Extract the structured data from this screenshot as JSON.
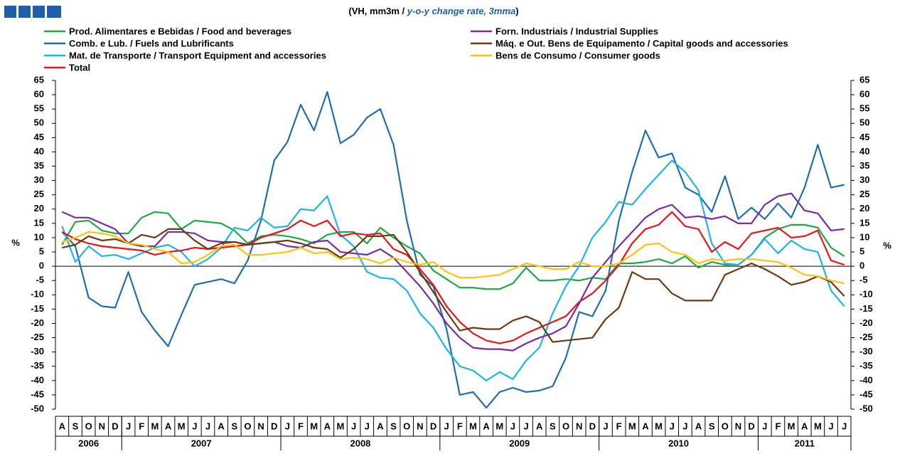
{
  "chart_data": {
    "type": "line",
    "title_parts": [
      "(VH, mm3m / ",
      "y-o-y change rate, 3mma",
      ")"
    ],
    "y_label": "%",
    "y2_label": "%",
    "categories": [
      "A",
      "S",
      "O",
      "N",
      "D",
      "J",
      "F",
      "M",
      "A",
      "M",
      "J",
      "J",
      "A",
      "S",
      "O",
      "N",
      "D",
      "J",
      "F",
      "M",
      "A",
      "M",
      "J",
      "J",
      "A",
      "S",
      "O",
      "N",
      "D",
      "J",
      "F",
      "M",
      "A",
      "M",
      "J",
      "J",
      "A",
      "S",
      "O",
      "N",
      "D",
      "J",
      "F",
      "M",
      "A",
      "M",
      "J",
      "J",
      "A",
      "S",
      "O",
      "N",
      "D",
      "J",
      "F",
      "M",
      "A",
      "M",
      "J",
      "J"
    ],
    "years": [
      "2006",
      "2007",
      "2008",
      "2009",
      "2010",
      "2011"
    ],
    "ylim": [
      -50,
      65
    ],
    "yticks": [
      -50,
      -45,
      -40,
      -35,
      -30,
      -25,
      -20,
      -15,
      -10,
      -5,
      0,
      5,
      10,
      15,
      20,
      25,
      30,
      35,
      40,
      45,
      50,
      55,
      60,
      65
    ],
    "y2lim": [
      -50,
      65
    ],
    "y2ticks": [
      -50,
      -45,
      -40,
      -35,
      -30,
      -25,
      -20,
      -15,
      -10,
      -5,
      0,
      5,
      10,
      15,
      20,
      25,
      30,
      35,
      40,
      45,
      50,
      55,
      60,
      65
    ],
    "series": [
      {
        "name": "Prod. Alimentares e Bebidas / Food and beverages",
        "color": "#1fa845",
        "values": [
          7.5,
          15.5,
          16,
          12.5,
          11.5,
          11.5,
          17,
          19,
          18.5,
          13,
          16,
          15.5,
          15,
          12.5,
          8,
          10.5,
          11,
          10.5,
          9.5,
          8,
          11,
          12,
          12,
          8,
          13.5,
          10,
          7,
          4.5,
          -1.5,
          -4.5,
          -7.5,
          -7.5,
          -8,
          -8,
          -6,
          -0.5,
          -5,
          -5,
          -4.5,
          -5,
          -4,
          -4.5,
          1,
          1,
          1.5,
          2.5,
          1,
          3.5,
          -0.5,
          1.5,
          0.5,
          0.5,
          4,
          10,
          13,
          14.5,
          14.5,
          13.5,
          6.5,
          3.5
        ]
      },
      {
        "name": "Comb. e Lub. /  Fuels and Lubrificants",
        "color": "#1f6db3",
        "values": [
          12,
          7,
          -11,
          -14,
          -14.5,
          -2,
          -16,
          -22.5,
          -28,
          -17,
          -6.5,
          -5.5,
          -4.5,
          -6,
          2,
          16,
          37,
          43.5,
          56.5,
          47.5,
          61,
          43,
          46,
          52,
          55,
          42.5,
          16,
          -3,
          -7,
          -22,
          -45,
          -44,
          -49.5,
          -44,
          -42.5,
          -44,
          -43.5,
          -42,
          -32,
          -16,
          -17.5,
          -8.5,
          16,
          33,
          47.5,
          38,
          39.5,
          27.5,
          25,
          19,
          31.5,
          16.5,
          20.5,
          16.5,
          22,
          17,
          27.5,
          42.5,
          27.5,
          28.5
        ]
      },
      {
        "name": "Mat. de Transporte / Transport Equipment and accessories",
        "color": "#1eb4ea",
        "values": [
          14,
          1.5,
          7,
          3.5,
          4,
          2.5,
          4.5,
          6.5,
          7.5,
          5,
          0,
          2.5,
          6.5,
          13.5,
          12.5,
          17,
          13.5,
          14,
          20,
          19.5,
          24.5,
          11,
          7,
          -2,
          -4,
          -4.5,
          -8.5,
          -16.5,
          -21.5,
          -29,
          -35,
          -36.5,
          -40,
          -37,
          -39.5,
          -33,
          -28.5,
          -16.5,
          -7,
          0,
          10,
          15.5,
          22.5,
          21.5,
          27,
          32,
          37,
          33,
          26.5,
          8,
          1,
          0.5,
          4,
          9.5,
          4.5,
          9,
          6,
          5,
          -8.5,
          -14
        ]
      },
      {
        "name": "Total",
        "color": "#e8141b",
        "values": [
          12,
          9.5,
          8,
          7,
          6.5,
          6,
          5.5,
          4,
          5,
          5.5,
          6.5,
          6,
          6.5,
          7,
          7.5,
          10,
          11.5,
          13,
          16,
          14,
          16,
          10.5,
          11.5,
          11,
          11.5,
          6,
          4,
          -1,
          -6.5,
          -14,
          -19.5,
          -23.5,
          -26,
          -27,
          -26,
          -23.5,
          -21.5,
          -19.5,
          -17.5,
          -12.5,
          -9.5,
          -5,
          0.5,
          8,
          13,
          14.5,
          19,
          14,
          13,
          5,
          8.5,
          6,
          11.5,
          12.5,
          13.5,
          10,
          10.5,
          12.5,
          2,
          0.5
        ]
      },
      {
        "name": "Forn. Industriais / Industrial Supplies",
        "color": "#7a2c9e",
        "values": [
          19,
          17,
          17,
          15,
          13,
          8,
          7,
          7,
          12,
          12,
          11.5,
          9,
          8.5,
          8.5,
          7.5,
          8,
          8.5,
          7,
          6.5,
          8.5,
          9,
          5,
          4.5,
          4,
          6,
          3,
          -2,
          -7,
          -13,
          -20,
          -25,
          -28.5,
          -29,
          -29,
          -29.5,
          -27,
          -25,
          -23.5,
          -21,
          -13,
          -4,
          1.5,
          7,
          12,
          17,
          20,
          21.5,
          17,
          17.5,
          16.5,
          17.5,
          15,
          15,
          21.5,
          24.5,
          25.5,
          19.5,
          18.5,
          12.5,
          13
        ]
      },
      {
        "name": "Máq. e Out. Bens de Equipamento / Capital goods and accessories",
        "color": "#6b3a10",
        "values": [
          6.5,
          7.5,
          10.5,
          9,
          9.5,
          8,
          11,
          10,
          13,
          13,
          9,
          6,
          8,
          8.5,
          7.5,
          8,
          8.5,
          9,
          8,
          6.5,
          6,
          3,
          6,
          10.5,
          10.5,
          11,
          5,
          -2,
          -9,
          -16,
          -22.5,
          -21.5,
          -22,
          -22,
          -19,
          -17.5,
          -19.5,
          -26.5,
          -26,
          -25.5,
          -25,
          -18.5,
          -14.5,
          -2,
          -4.5,
          -4.5,
          -9.5,
          -12,
          -12,
          -12,
          -3,
          -1,
          1,
          -1,
          -3.5,
          -6.5,
          -5.5,
          -3.5,
          -5.5,
          -10.5
        ]
      },
      {
        "name": "Bens de Consumo / Consumer goods",
        "color": "#ffc20e",
        "values": [
          8.5,
          10,
          12,
          11.5,
          10.5,
          8,
          7.5,
          6,
          5,
          1,
          1.5,
          4,
          7,
          7.5,
          4,
          4,
          4.5,
          5,
          6.5,
          4.5,
          5,
          2.5,
          3,
          2.5,
          1,
          3,
          1.5,
          0.5,
          1.5,
          -2,
          -4,
          -4,
          -3.5,
          -3,
          -1,
          1,
          0,
          -1,
          -1,
          1.5,
          0,
          0,
          1,
          4,
          7.5,
          8,
          5,
          4,
          1,
          2.5,
          2,
          2.5,
          2.5,
          2,
          1.5,
          -0.5,
          -3,
          -3.5,
          -5,
          -6
        ]
      }
    ]
  }
}
